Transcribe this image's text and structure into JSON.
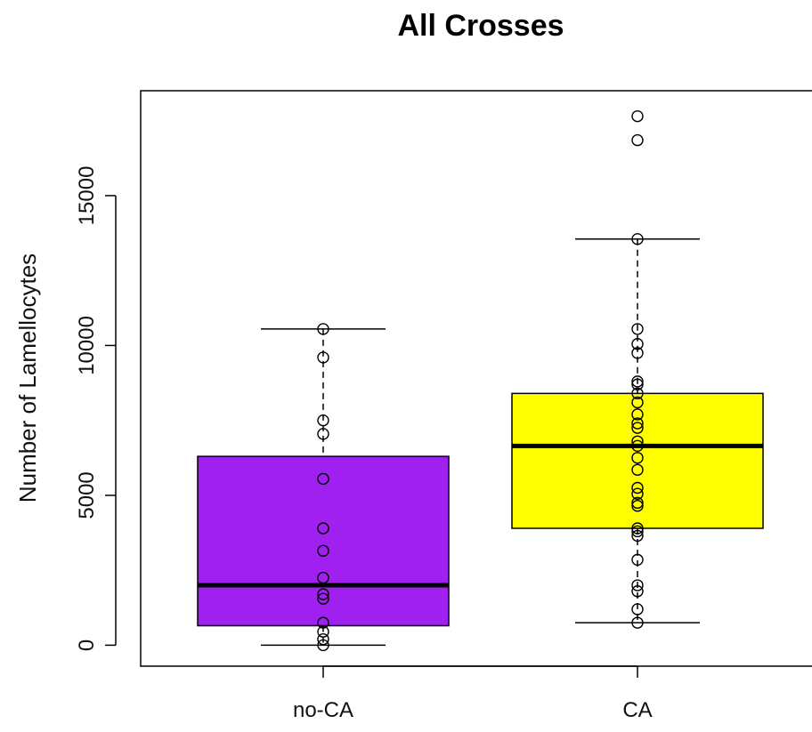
{
  "chart_data": {
    "type": "box",
    "title": "All Crosses",
    "xlabel": "",
    "ylabel": "Number of Lamellocytes",
    "ylim": [
      -700,
      18500
    ],
    "yticks": [
      0,
      5000,
      10000,
      15000
    ],
    "categories": [
      "no-CA",
      "CA"
    ],
    "colors": {
      "no-CA": "#a020f0",
      "CA": "#ffff00"
    },
    "boxes": [
      {
        "category": "no-CA",
        "whisker_low": 0,
        "q1": 650,
        "median": 2000,
        "q3": 6300,
        "whisker_high": 10550,
        "points": [
          0,
          200,
          450,
          750,
          1550,
          1700,
          2250,
          3150,
          3900,
          5550,
          7050,
          7500,
          9600,
          10550
        ]
      },
      {
        "category": "CA",
        "whisker_low": 750,
        "q1": 3900,
        "median": 6650,
        "q3": 8400,
        "whisker_high": 13550,
        "points": [
          750,
          1200,
          1800,
          2000,
          2850,
          3650,
          3800,
          3900,
          4650,
          4750,
          5050,
          5250,
          5850,
          6250,
          6650,
          6800,
          7250,
          7400,
          7700,
          8100,
          8400,
          8700,
          8800,
          9750,
          10050,
          10550,
          13550,
          16850,
          17650
        ]
      }
    ]
  }
}
